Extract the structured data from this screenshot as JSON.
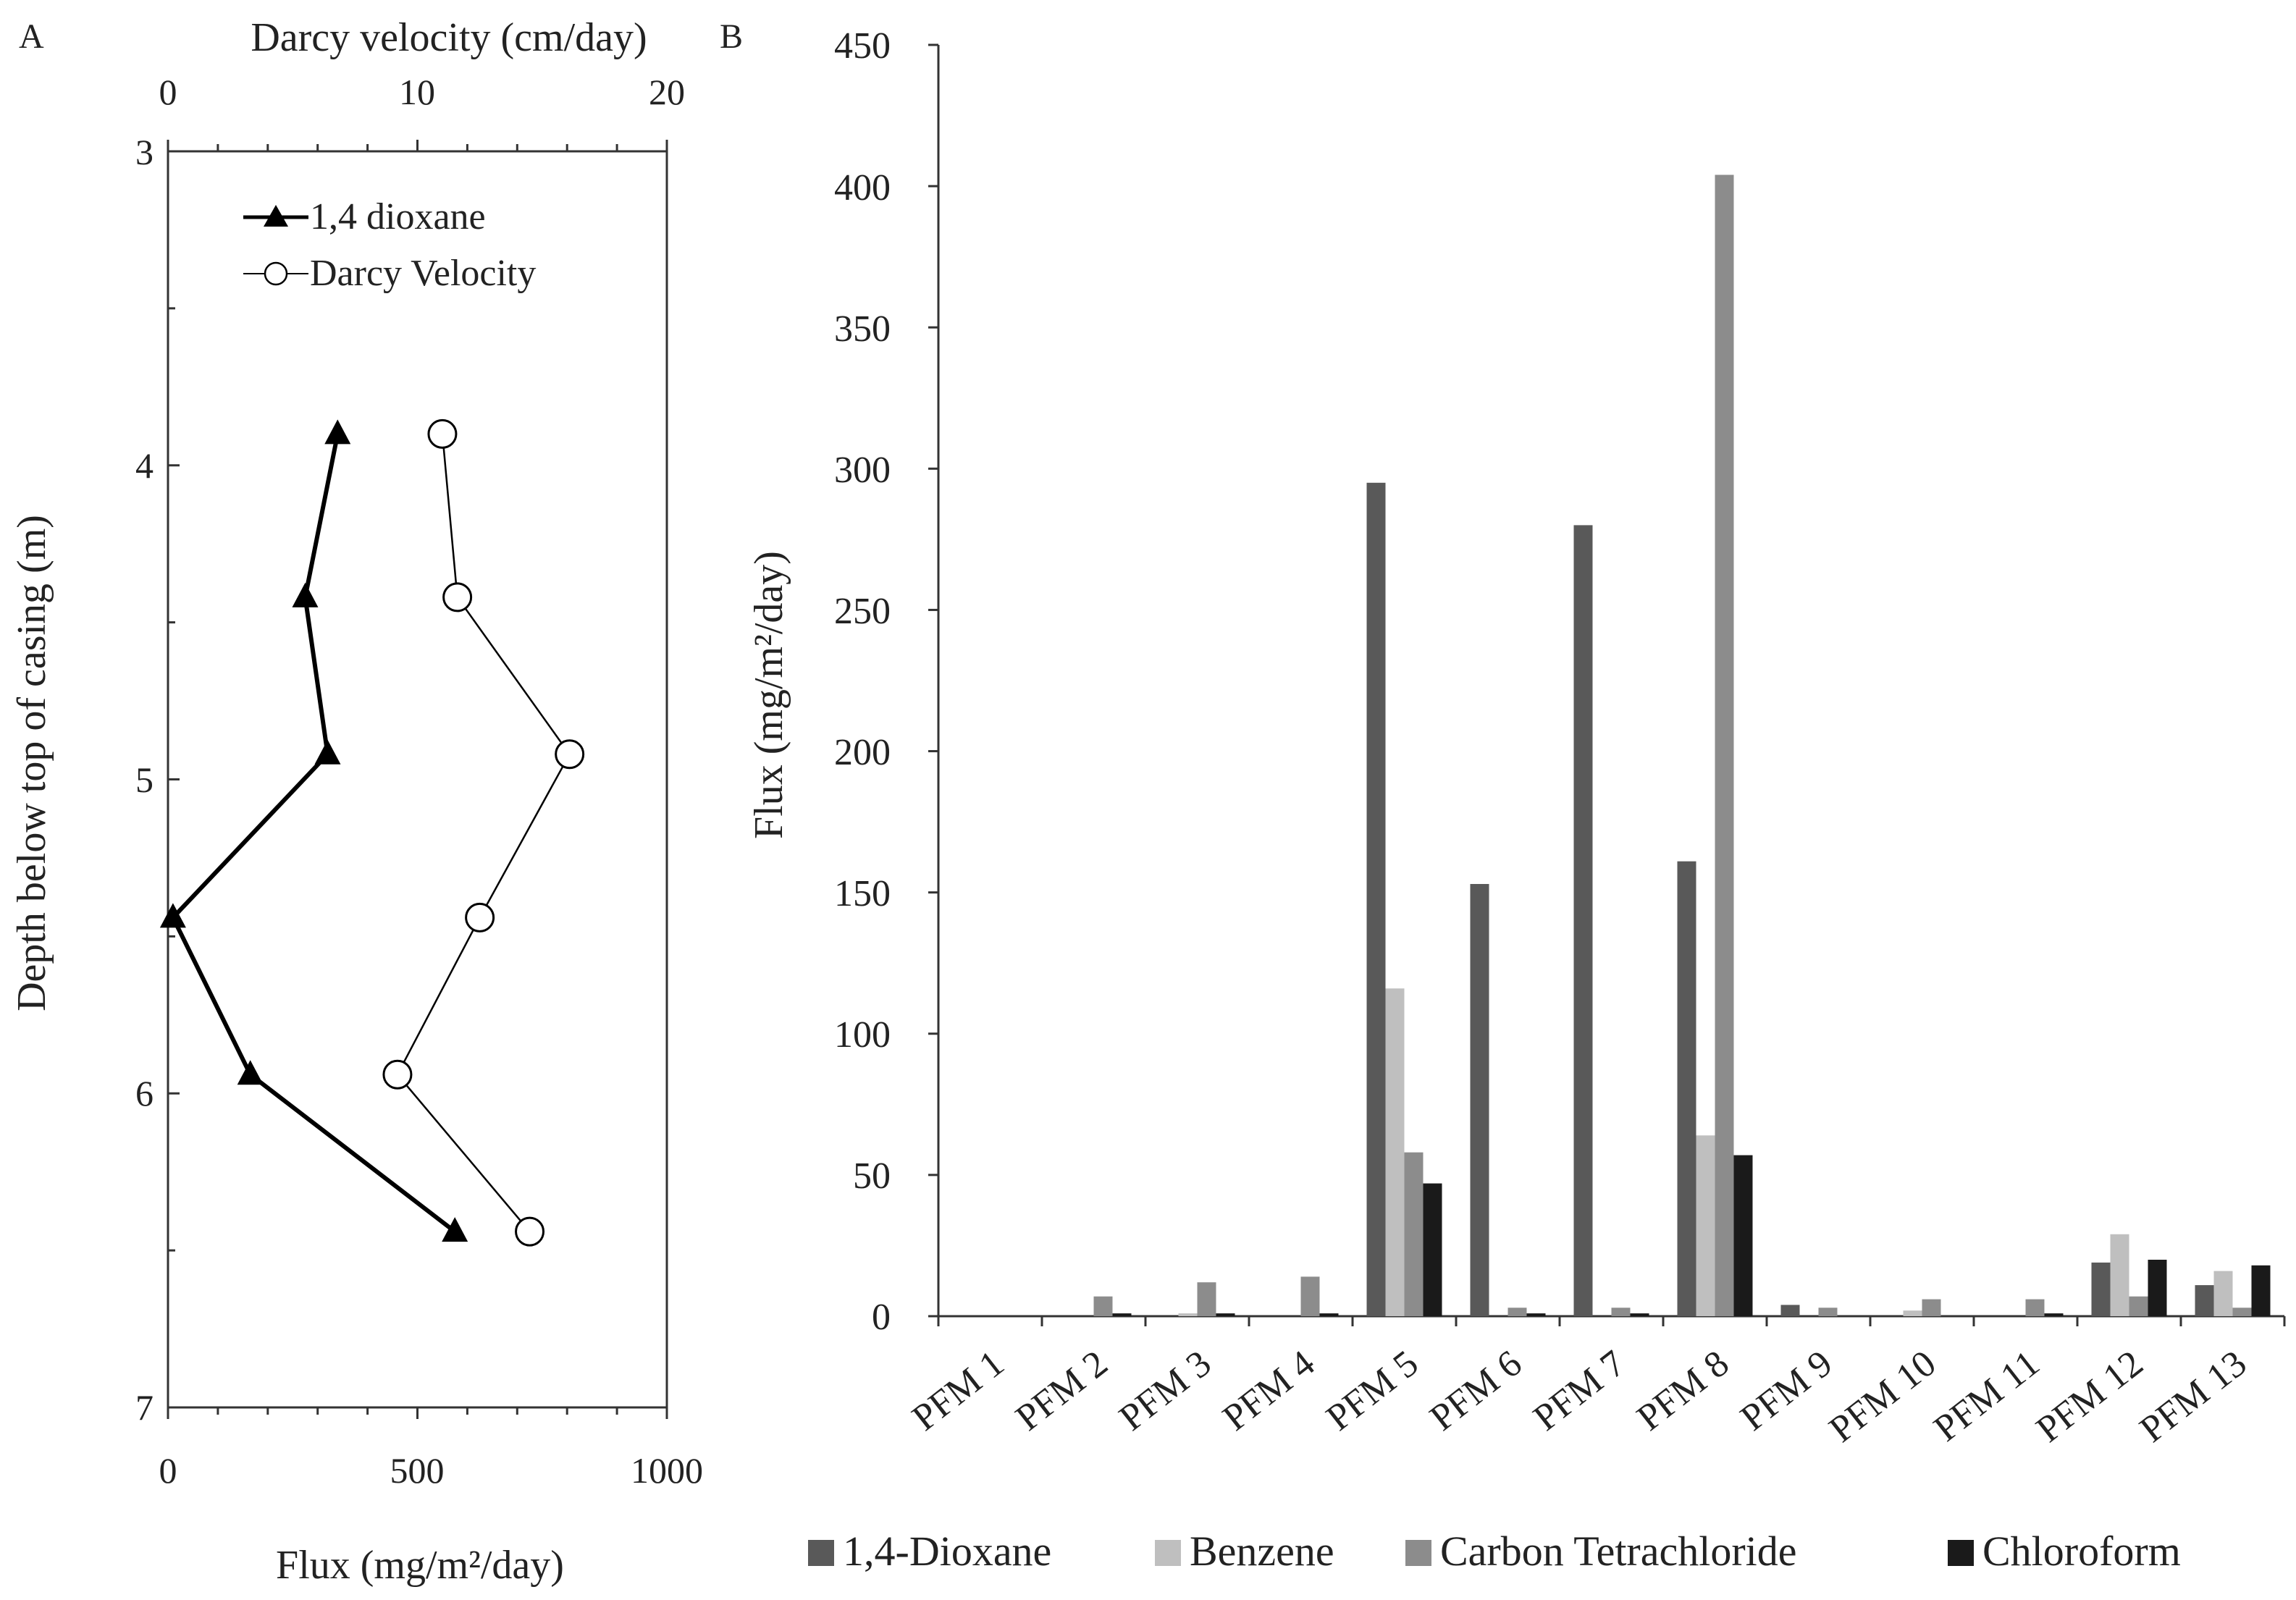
{
  "chart_data": [
    {
      "type": "line",
      "panel_label": "A",
      "title": "",
      "ylabel": "Depth below top of casing (m)",
      "xlabel_bottom": "Flux (mg/m²/day)",
      "xlabel_top": "Darcy velocity (cm/day)",
      "xlim_bottom": [
        0,
        1000
      ],
      "xticks_bottom": [
        0,
        500,
        1000
      ],
      "xlim_top": [
        0,
        20
      ],
      "xticks_top": [
        0,
        10,
        20
      ],
      "ylim": [
        3,
        7
      ],
      "yticks": [
        3,
        4,
        5,
        6,
        7
      ],
      "y_inverted": true,
      "legend_position": "top-left",
      "series": [
        {
          "name": "1,4 dioxane",
          "axis": "bottom",
          "marker": "filled-triangle",
          "color": "#000000",
          "points": [
            [
              340,
              3.9
            ],
            [
              275,
              4.42
            ],
            [
              320,
              4.92
            ],
            [
              10,
              5.44
            ],
            [
              165,
              5.94
            ],
            [
              575,
              6.44
            ]
          ]
        },
        {
          "name": "Darcy Velocity",
          "axis": "top",
          "marker": "open-circle",
          "color": "#000000",
          "points": [
            [
              11.0,
              3.9
            ],
            [
              11.6,
              4.42
            ],
            [
              16.1,
              4.92
            ],
            [
              12.5,
              5.44
            ],
            [
              9.2,
              5.94
            ],
            [
              14.5,
              6.44
            ]
          ]
        }
      ]
    },
    {
      "type": "bar",
      "panel_label": "B",
      "title": "",
      "ylabel": "Flux (mg/m²/day)",
      "xlabel": "",
      "ylim": [
        0,
        450
      ],
      "yticks": [
        0,
        50,
        100,
        150,
        200,
        250,
        300,
        350,
        400,
        450
      ],
      "legend_position": "bottom",
      "categories": [
        "PFM 1",
        "PFM 2",
        "PFM 3",
        "PFM 4",
        "PFM 5",
        "PFM 6",
        "PFM 7",
        "PFM 8",
        "PFM 9",
        "PFM 10",
        "PFM 11",
        "PFM 12",
        "PFM 13"
      ],
      "series": [
        {
          "name": "1,4-Dioxane",
          "color": "#595959",
          "values": [
            0,
            0,
            0,
            0,
            295,
            153,
            280,
            161,
            4,
            0,
            0,
            19,
            11
          ]
        },
        {
          "name": "Benzene",
          "color": "#bfbfbf",
          "values": [
            0,
            0,
            1,
            0,
            116,
            0,
            0,
            64,
            0,
            2,
            0,
            29,
            16
          ]
        },
        {
          "name": "Carbon Tetrachloride",
          "color": "#8c8c8c",
          "values": [
            0,
            7,
            12,
            14,
            58,
            3,
            3,
            404,
            3,
            6,
            6,
            7,
            3
          ]
        },
        {
          "name": "Chloroform",
          "color": "#1a1a1a",
          "values": [
            0,
            1,
            1,
            1,
            47,
            1,
            1,
            57,
            0,
            0,
            1,
            20,
            18
          ]
        }
      ]
    }
  ]
}
